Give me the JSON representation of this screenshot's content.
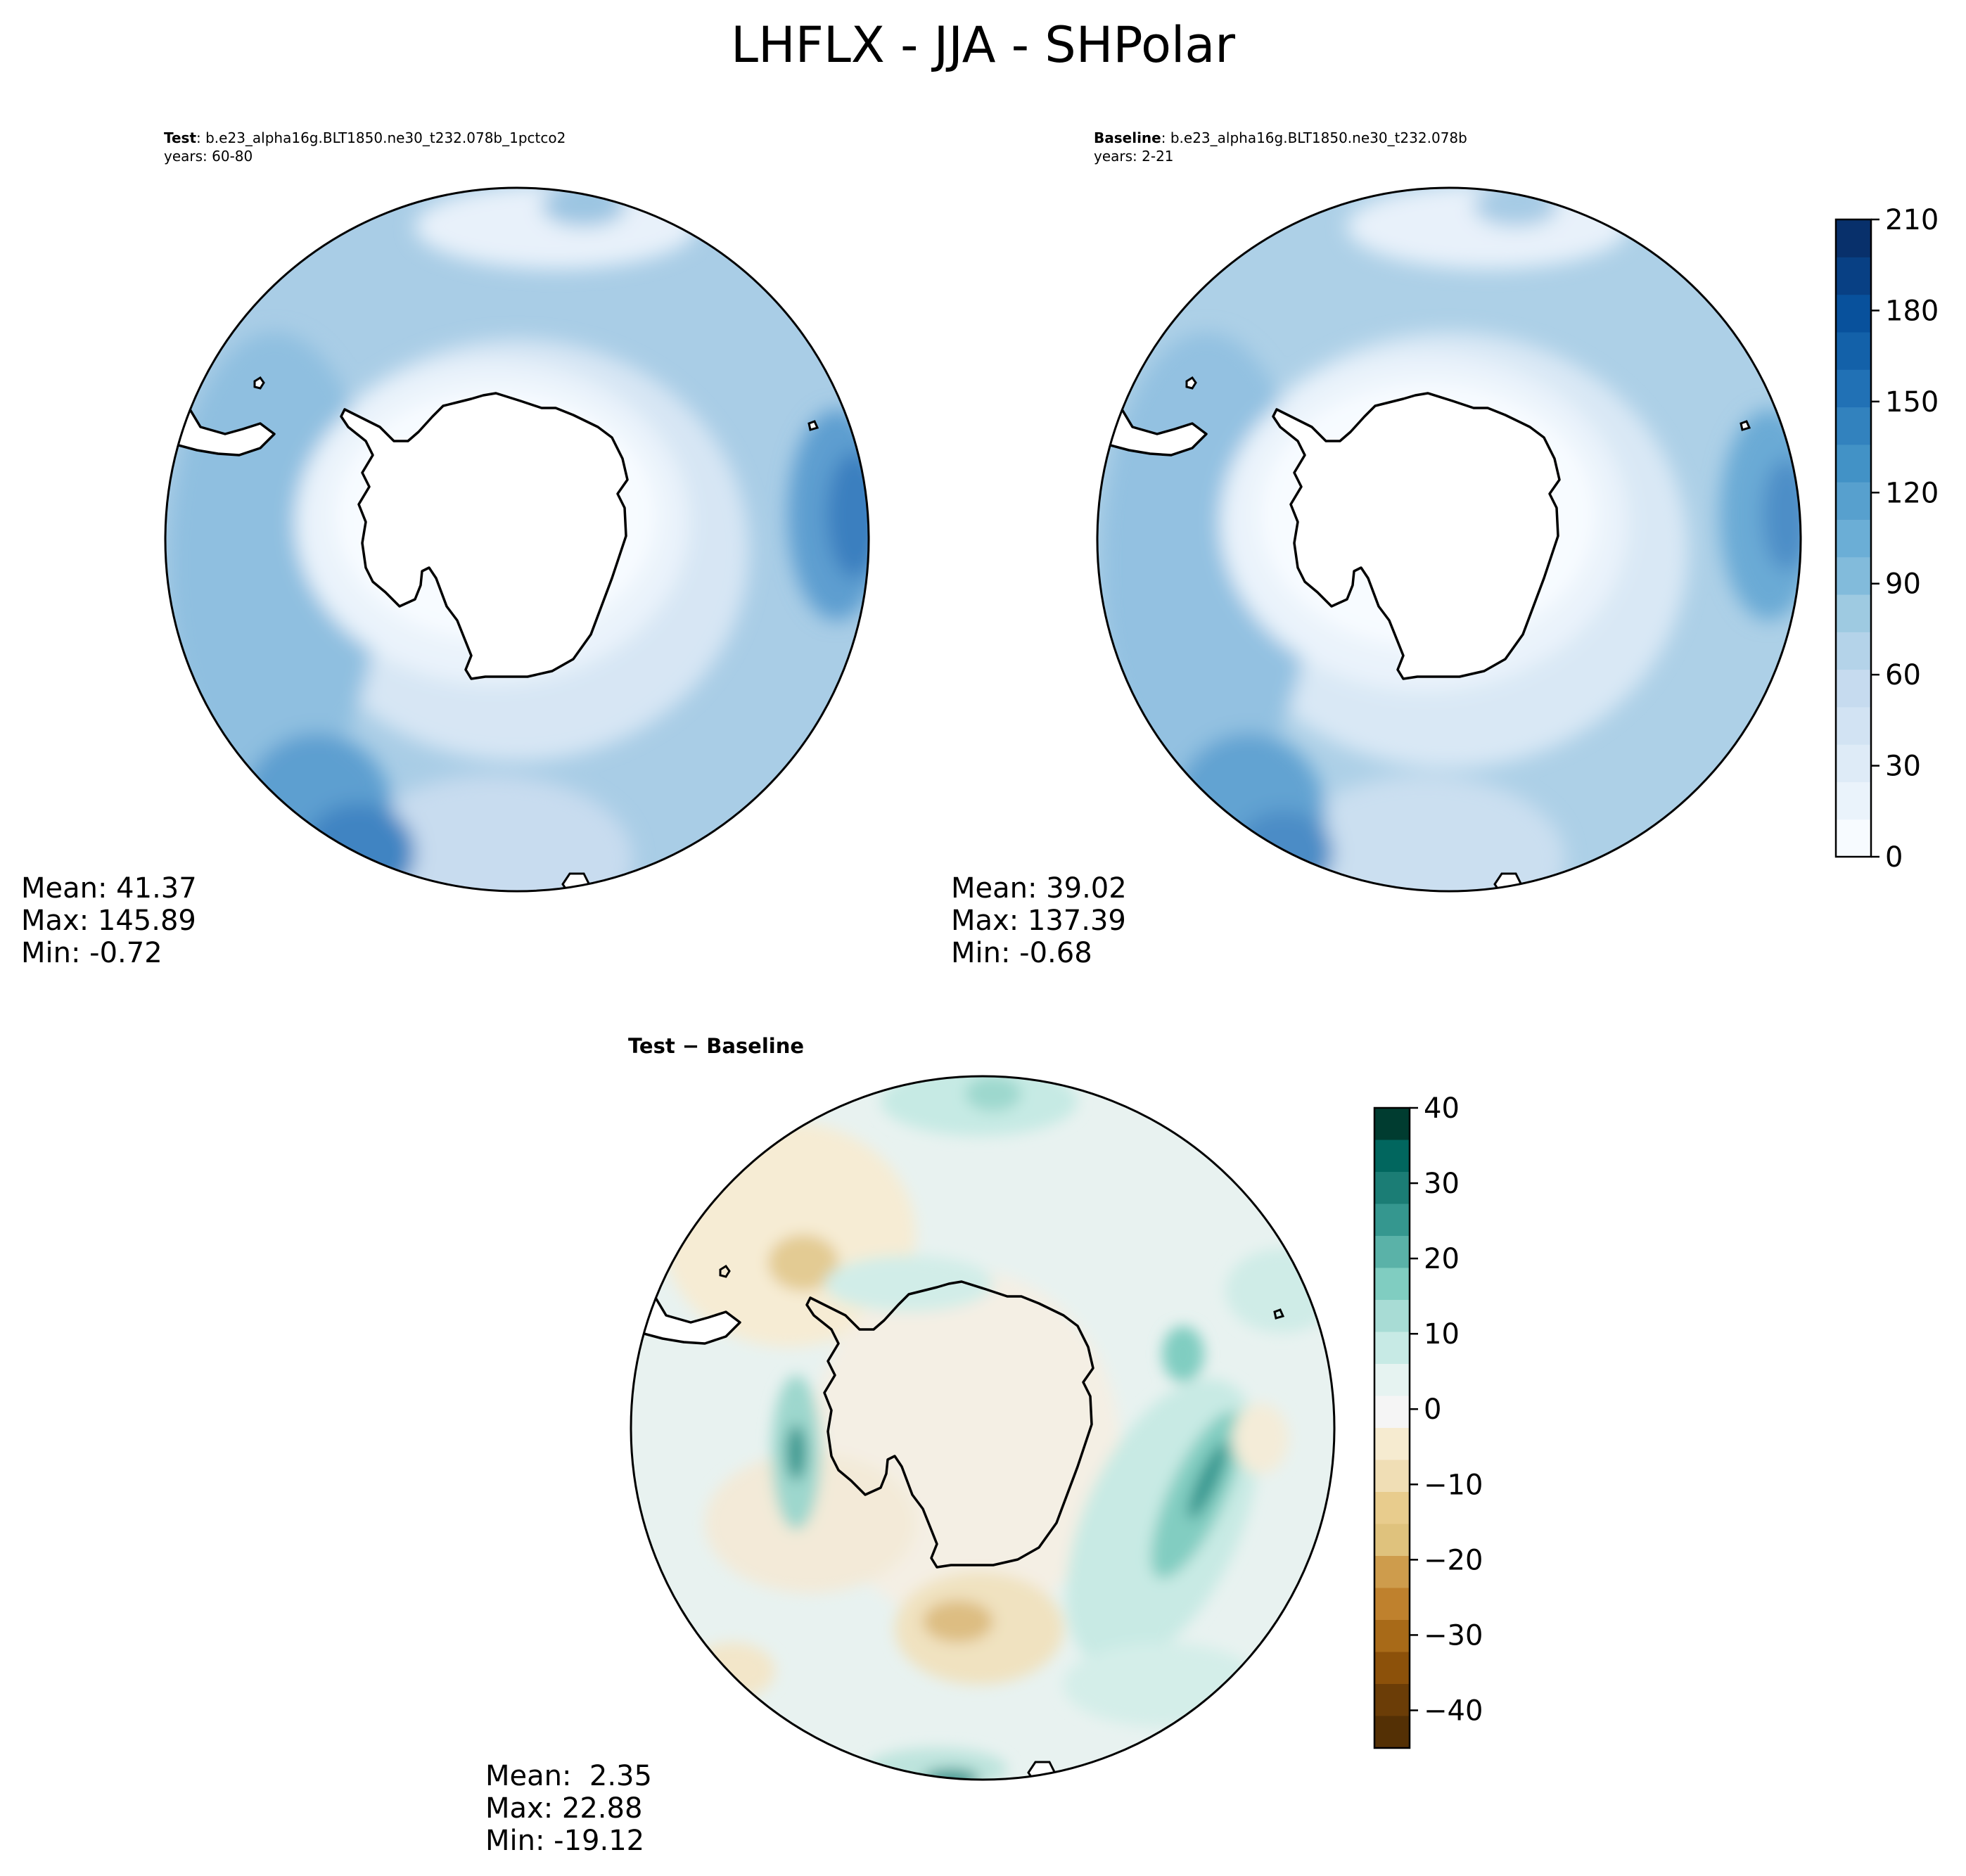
{
  "figure": {
    "title": "LHFLX - JJA - SHPolar"
  },
  "panels": [
    {
      "id": "test",
      "label_bold": "Test",
      "case": ": b.e23_alpha16g.BLT1850.ne30_t232.078b_1pctco2",
      "years": "years: 60-80",
      "mean": "Mean: 41.37",
      "max": "Max: 145.89",
      "min": "Min: -0.72"
    },
    {
      "id": "baseline",
      "label_bold": "Baseline",
      "case": ": b.e23_alpha16g.BLT1850.ne30_t232.078b",
      "years": "years: 2-21",
      "mean": "Mean: 39.02",
      "max": "Max: 137.39",
      "min": "Min: -0.68"
    },
    {
      "id": "difference",
      "title": "Test − Baseline",
      "mean": "Mean:  2.35",
      "max": "Max: 22.88",
      "min": "Min: -19.12"
    }
  ],
  "colorbars": {
    "main": {
      "ticks": [
        "0",
        "30",
        "60",
        "90",
        "120",
        "150",
        "180",
        "210"
      ],
      "colors": [
        "#f7fbff",
        "#eaf3fb",
        "#deebf7",
        "#d2e3f3",
        "#c6dbef",
        "#b4d3e9",
        "#9ecae1",
        "#82bbdb",
        "#6baed6",
        "#57a0ce",
        "#4292c6",
        "#3282be",
        "#2171b5",
        "#1361a9",
        "#08519c",
        "#084084",
        "#08306b"
      ]
    },
    "diff": {
      "ticks": [
        "40",
        "30",
        "20",
        "10",
        "0",
        "−10",
        "−20",
        "−30",
        "−40"
      ],
      "colors": [
        "#003c30",
        "#01665e",
        "#1b7d75",
        "#35978f",
        "#5ab2a8",
        "#80cdc1",
        "#a8dcd5",
        "#c7eae5",
        "#e6f3f1",
        "#f5f5f5",
        "#f6ebd0",
        "#f0deb5",
        "#e8cc8d",
        "#dfc27d",
        "#ce9c4c",
        "#bf812d",
        "#a86a18",
        "#8c510a",
        "#6b3d07",
        "#543005"
      ]
    }
  }
}
